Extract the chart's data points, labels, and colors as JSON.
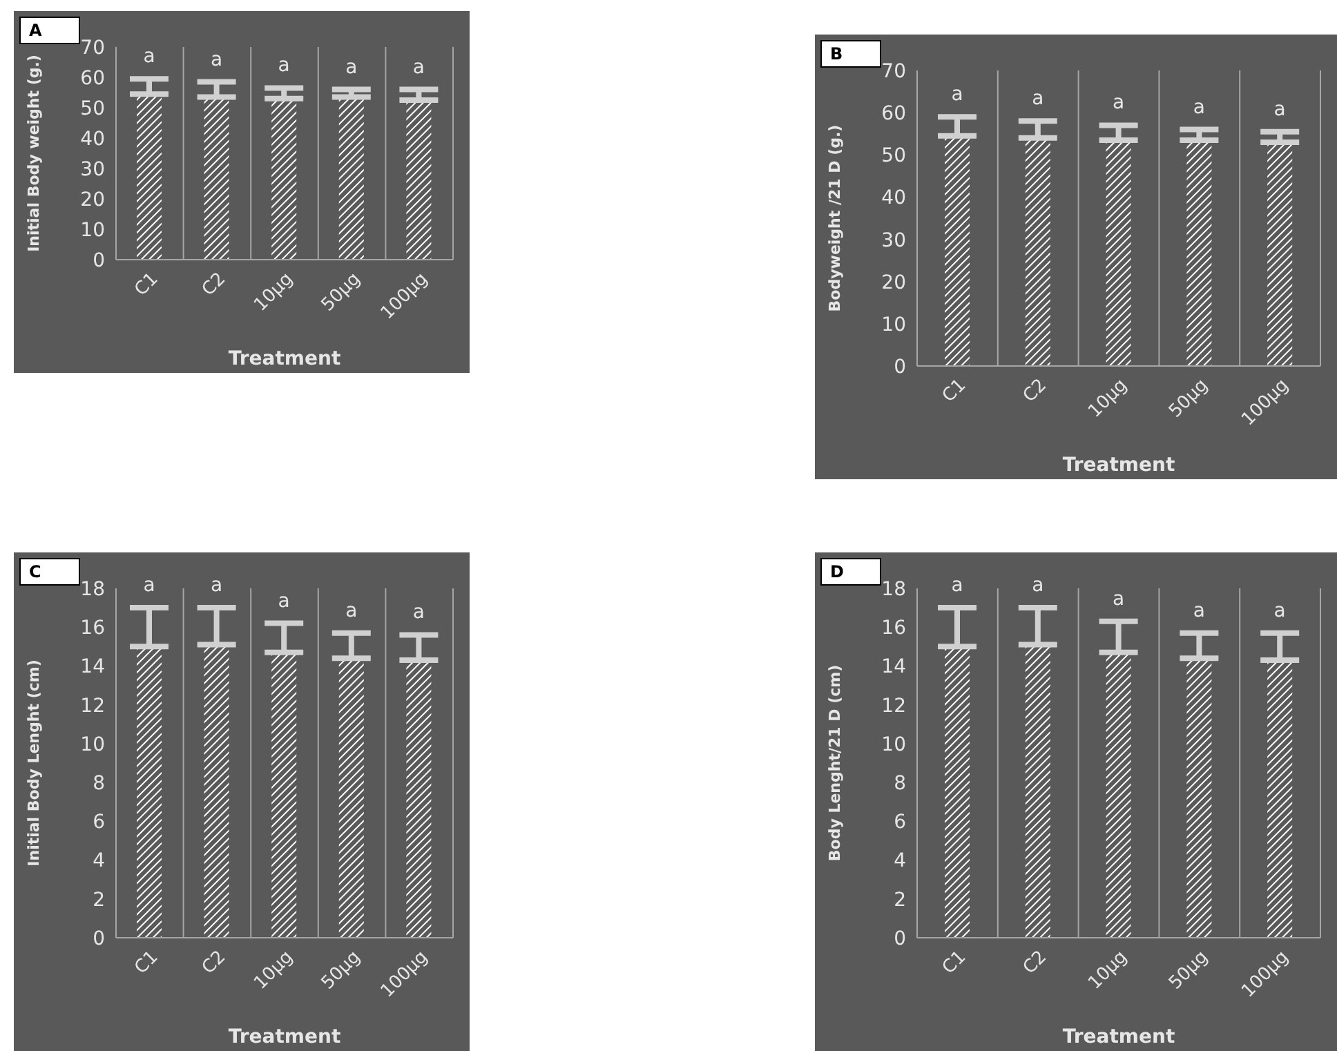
{
  "chart_data": [
    {
      "type": "bar",
      "title": "A",
      "xlabel": "Treatment",
      "ylabel": "Initial Body weight (g.)",
      "categories": [
        "C1",
        "C2",
        "10µg",
        "50µg",
        "100µg"
      ],
      "values": [
        54.5,
        53.5,
        53,
        53.5,
        52.5
      ],
      "errors": [
        [
          54.5,
          59.5
        ],
        [
          53.5,
          58.5
        ],
        [
          53,
          56.5
        ],
        [
          53.5,
          56
        ],
        [
          52.5,
          56
        ]
      ],
      "color": "#ffffff",
      "ylim": [
        0,
        70
      ],
      "yticks": [
        0,
        10,
        20,
        30,
        40,
        50,
        60,
        70
      ],
      "grid": "x",
      "annotations": [
        "a",
        "a",
        "a",
        "a",
        "a"
      ]
    },
    {
      "type": "bar",
      "title": "B",
      "xlabel": "Treatment",
      "ylabel": "Bodyweight  /21 D (g.)",
      "categories": [
        "C1",
        "C2",
        "10µg",
        "50µg",
        "100µg"
      ],
      "values": [
        54.5,
        54,
        53.5,
        53.5,
        53
      ],
      "errors": [
        [
          54.5,
          59
        ],
        [
          54,
          58
        ],
        [
          53.5,
          57
        ],
        [
          53.5,
          56
        ],
        [
          53,
          55.5
        ]
      ],
      "color": "#ffffff",
      "ylim": [
        0,
        70
      ],
      "yticks": [
        0,
        10,
        20,
        30,
        40,
        50,
        60,
        70
      ],
      "grid": "x",
      "annotations": [
        "a",
        "a",
        "a",
        "a",
        "a"
      ]
    },
    {
      "type": "bar",
      "title": "C",
      "xlabel": "Treatment",
      "ylabel": "Initial Body Lenght (cm)",
      "categories": [
        "C1",
        "C2",
        "10µg",
        "50µg",
        "100µg"
      ],
      "values": [
        15,
        15.1,
        14.7,
        14.4,
        14.3
      ],
      "errors": [
        [
          15,
          17
        ],
        [
          15.1,
          17
        ],
        [
          14.7,
          16.2
        ],
        [
          14.4,
          15.7
        ],
        [
          14.3,
          15.6
        ]
      ],
      "color": "#ffffff",
      "ylim": [
        0,
        18
      ],
      "yticks": [
        0,
        2,
        4,
        6,
        8,
        10,
        12,
        14,
        16,
        18
      ],
      "grid": "x",
      "annotations": [
        "a",
        "a",
        "a",
        "a",
        "a"
      ]
    },
    {
      "type": "bar",
      "title": "D",
      "xlabel": "Treatment",
      "ylabel": "Body Lenght/21 D (cm)",
      "categories": [
        "C1",
        "C2",
        "10µg",
        "50µg",
        "100µg"
      ],
      "values": [
        15,
        15.1,
        14.7,
        14.4,
        14.3
      ],
      "errors": [
        [
          15,
          17
        ],
        [
          15.1,
          17
        ],
        [
          14.7,
          16.3
        ],
        [
          14.4,
          15.7
        ],
        [
          14.3,
          15.7
        ]
      ],
      "color": "#ffffff",
      "ylim": [
        0,
        18
      ],
      "yticks": [
        0,
        2,
        4,
        6,
        8,
        10,
        12,
        14,
        16,
        18
      ],
      "grid": "x",
      "annotations": [
        "a",
        "a",
        "a",
        "a",
        "a"
      ]
    }
  ]
}
